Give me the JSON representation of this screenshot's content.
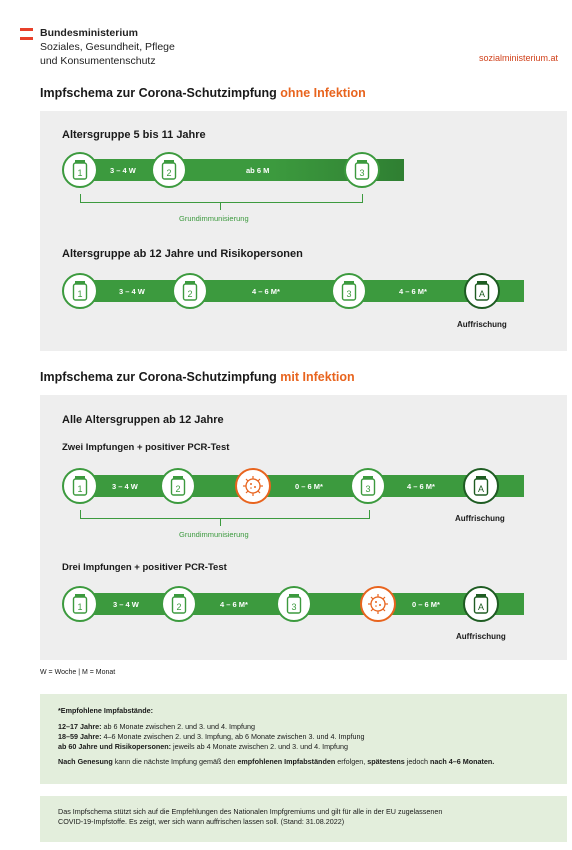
{
  "header": {
    "ministry_line1": "Bundesministerium",
    "ministry_line2": "Soziales, Gesundheit, Pflege",
    "ministry_line3": "und Konsumentenschutz",
    "website": "sozialministerium.at",
    "flag_colors": [
      "#e8402a",
      "#ffffff",
      "#e8402a"
    ]
  },
  "section1": {
    "title_prefix": "Impfschema zur Corona-Schutzimpfung ",
    "title_accent": "ohne Infektion",
    "group1": {
      "title": "Altersgruppe 5 bis 11 Jahre",
      "doses": [
        "1",
        "2",
        "3"
      ],
      "intervals": [
        "3 – 4 W",
        "ab 6 M"
      ],
      "bracket_label": "Grundimmunisierung"
    },
    "group2": {
      "title": "Altersgruppe ab 12 Jahre und Risikopersonen",
      "doses": [
        "1",
        "2",
        "3",
        "A"
      ],
      "intervals": [
        "3 – 4 W",
        "4 – 6 M*",
        "4 – 6 M*"
      ],
      "booster_label": "Auffrischung"
    }
  },
  "section2": {
    "title_prefix": "Impfschema zur Corona-Schutzimpfung ",
    "title_accent": "mit Infektion",
    "group_title": "Alle Altersgruppen ab 12 Jahre",
    "row1": {
      "title": "Zwei Impfungen + positiver PCR-Test",
      "doses": [
        "1",
        "2",
        "3",
        "A"
      ],
      "intervals": [
        "3 – 4 W",
        "0 – 6 M*",
        "4 – 6 M*"
      ],
      "bracket_label": "Grundimmunisierung",
      "booster_label": "Auffrischung"
    },
    "row2": {
      "title": "Drei Impfungen + positiver PCR-Test",
      "doses": [
        "1",
        "2",
        "3",
        "A"
      ],
      "intervals": [
        "3 – 4 W",
        "4 – 6 M*",
        "0 – 6 M*"
      ],
      "booster_label": "Auffrischung"
    }
  },
  "legend": "W = Woche | M = Monat",
  "recommendations": {
    "title": "*Empfohlene Impfabstände:",
    "r1_bold": "12–17 Jahre:",
    "r1_text": " ab 6 Monate zwischen 2. und 3. und 4. Impfung",
    "r2_bold": "18–59 Jahre:",
    "r2_text": " 4–6 Monate zwischen 2. und 3. Impfung, ab 6 Monate zwischen 3. und 4. Impfung",
    "r3_bold": "ab 60 Jahre und Risikopersonen:",
    "r3_text": " jeweils ab 4 Monate zwischen 2. und 3. und 4. Impfung",
    "note_b1": "Nach Genesung",
    "note_t1": " kann die nächste Impfung gemäß den ",
    "note_b2": "empfohlenen Impfabständen",
    "note_t2": " erfolgen, ",
    "note_b3": "spätestens",
    "note_t3": " jedoch ",
    "note_b4": "nach 4–6 Monaten."
  },
  "footer_note": {
    "line1": "Das Impfschema stützt sich auf die Empfehlungen des Nationalen Impfgremiums und gilt für alle in der EU zugelassenen",
    "line2": "COVID-19-Impfstoffe. Es zeigt, wer sich wann auffrischen lassen soll. (Stand: 31.08.2022)"
  },
  "colors": {
    "green": "#3c9a3e",
    "dark_green": "#1e5c22",
    "orange": "#e8641e",
    "panel": "#eeeeee",
    "info_bg": "#e3eedc"
  },
  "icons": {
    "dose": "vial-icon",
    "infection": "virus-icon"
  }
}
